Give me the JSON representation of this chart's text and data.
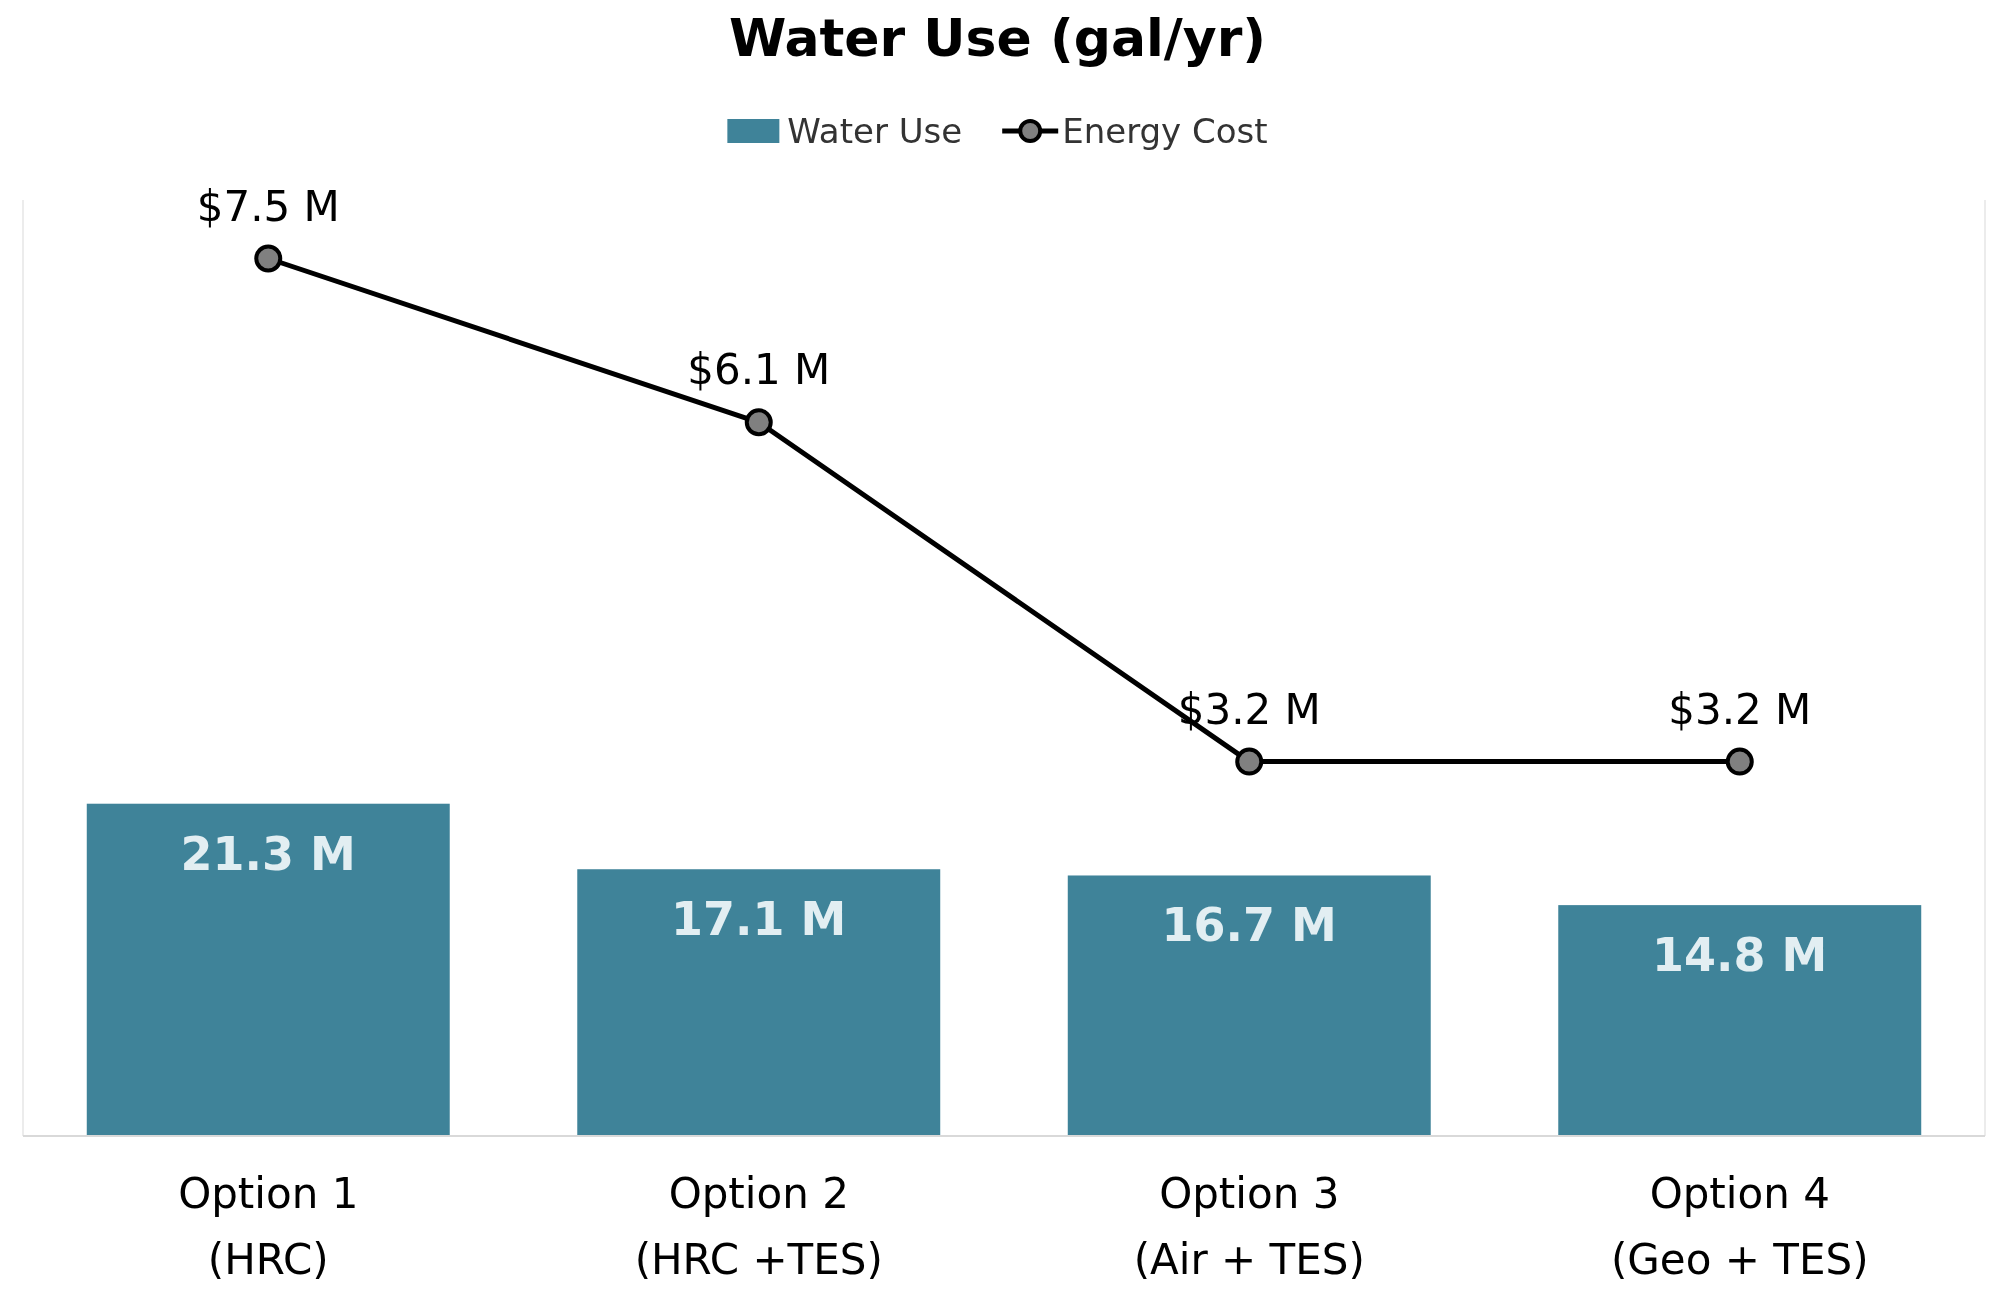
{
  "chart_data": {
    "type": "bar",
    "title": "Water Use (gal/yr)",
    "categories": [
      "Option 1\n(HRC)",
      "Option 2\n(HRC +TES)",
      "Option 3\n(Air + TES)",
      "Option 4\n(Geo + TES)"
    ],
    "series": [
      {
        "name": "Water Use",
        "color": "#3f8399",
        "values": [
          21.3,
          17.1,
          16.7,
          14.8
        ],
        "value_labels": [
          "21.3 M",
          "17.1 M",
          "16.7 M",
          "14.8 M"
        ]
      },
      {
        "name": "Energy Cost",
        "type": "line",
        "axis": "y2",
        "color": "#000000",
        "values": [
          7.5,
          6.1,
          3.2,
          3.2
        ],
        "value_labels": [
          "$7.5 M",
          "$6.1 M",
          "$3.2 M",
          "$3.2 M"
        ]
      }
    ],
    "ylim": [
      0,
      60
    ],
    "y2lim": [
      0,
      8
    ],
    "tick_labels": "x",
    "legend": "top",
    "marker": "circle",
    "line_style": "solid"
  }
}
